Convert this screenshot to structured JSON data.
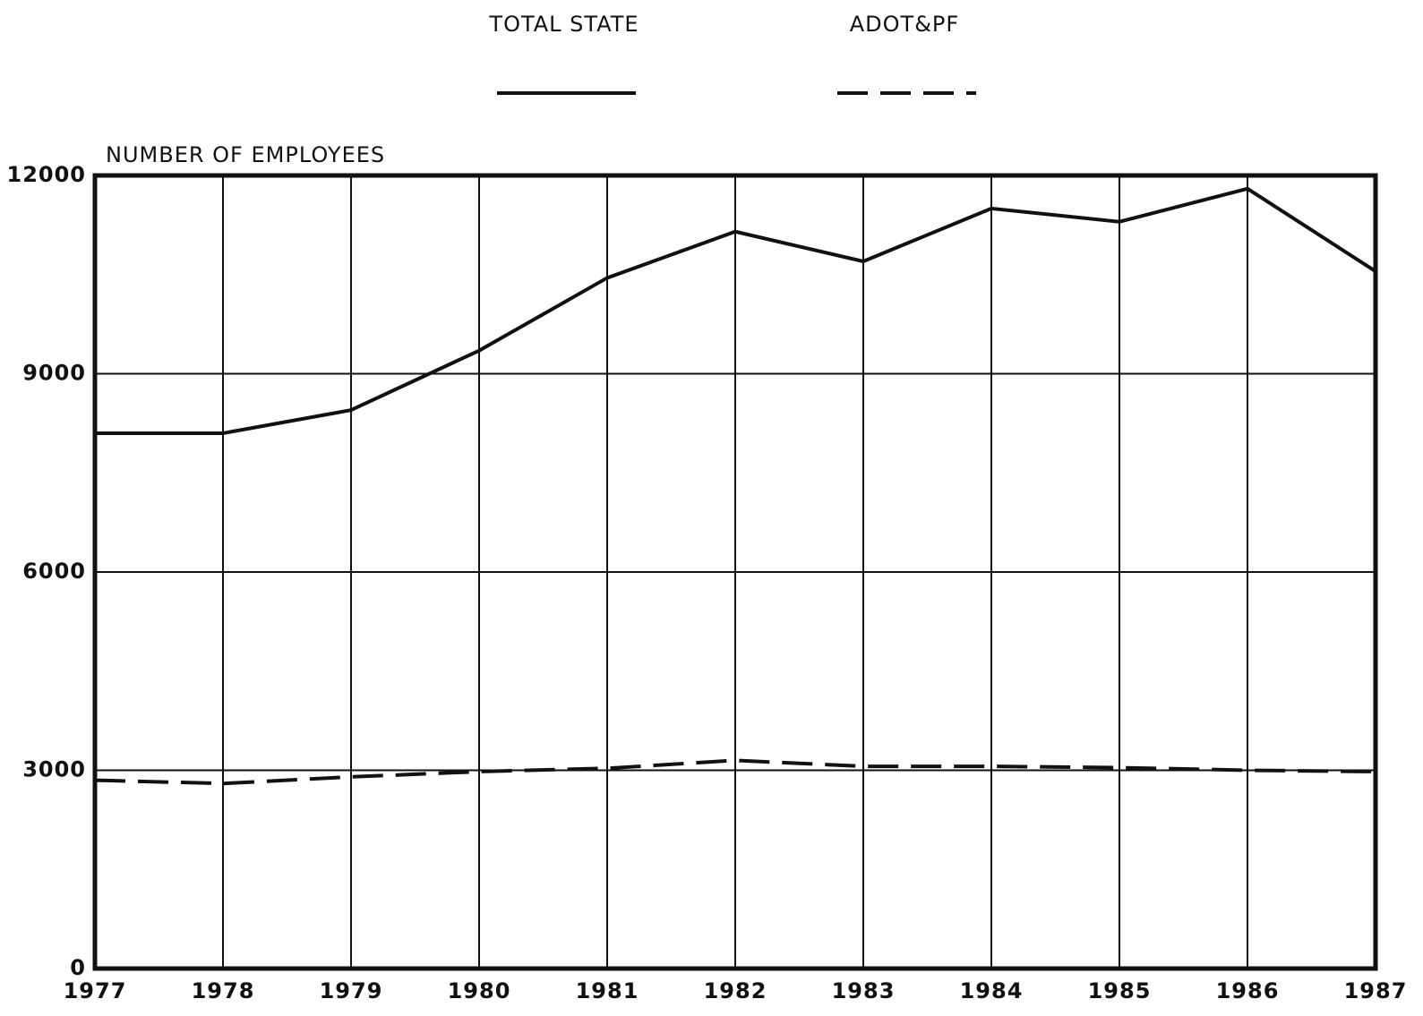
{
  "chart_data": {
    "type": "line",
    "ylabel": "NUMBER OF EMPLOYEES",
    "categories": [
      "1977",
      "1978",
      "1979",
      "1980",
      "1981",
      "1982",
      "1983",
      "1984",
      "1985",
      "1986",
      "1987"
    ],
    "series": [
      {
        "name": "TOTAL STATE",
        "color": "#111111",
        "style": "solid",
        "values": [
          8100,
          8100,
          8450,
          9350,
          10450,
          11150,
          10700,
          11500,
          11300,
          11800,
          10550
        ]
      },
      {
        "name": "ADOT&PF",
        "color": "#111111",
        "style": "dashed",
        "values": [
          2850,
          2800,
          2900,
          2980,
          3030,
          3150,
          3060,
          3060,
          3040,
          3000,
          2980
        ]
      }
    ],
    "ylim": [
      0,
      12000
    ],
    "yticks": [
      0,
      3000,
      6000,
      9000,
      12000
    ],
    "grid": true
  }
}
